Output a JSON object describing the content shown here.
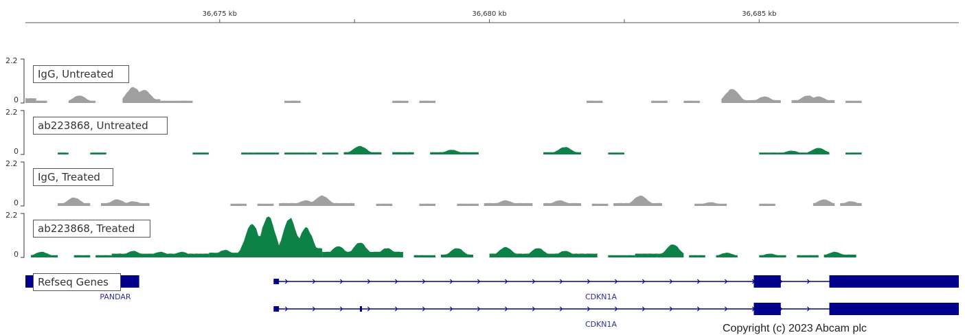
{
  "viewer": {
    "locus": {
      "start_kb": 36671.4,
      "end_kb": 36688.7
    },
    "ruler": {
      "major_ticks_kb": [
        36675,
        36680,
        36685
      ],
      "major_labels": [
        "36,675 kb",
        "36,680 kb",
        "36,685 kb"
      ],
      "minor_ticks_kb": [
        36677.5,
        36682.5
      ]
    }
  },
  "tracks": [
    {
      "name": "IgG, Untreated",
      "scale_max": "2.2",
      "scale_min": "0",
      "color": "#a0a0a0",
      "segments": [
        {
          "from": 36671.4,
          "to": 36671.6,
          "h": 0.25
        },
        {
          "from": 36671.6,
          "to": 36671.8,
          "h": 0.12
        },
        {
          "from": 36672.2,
          "to": 36672.7,
          "h": 0.12,
          "bumps": [
            [
              36672.4,
              0.4
            ]
          ]
        },
        {
          "from": 36673.2,
          "to": 36673.9,
          "h": 0.2,
          "bumps": [
            [
              36673.4,
              0.85
            ],
            [
              36673.6,
              0.7
            ]
          ]
        },
        {
          "from": 36673.9,
          "to": 36674.5,
          "h": 0.12
        },
        {
          "from": 36676.2,
          "to": 36676.5,
          "h": 0.12
        },
        {
          "from": 36678.2,
          "to": 36678.5,
          "h": 0.12
        },
        {
          "from": 36678.7,
          "to": 36679.0,
          "h": 0.12
        },
        {
          "from": 36681.8,
          "to": 36682.1,
          "h": 0.12
        },
        {
          "from": 36683.0,
          "to": 36683.3,
          "h": 0.12
        },
        {
          "from": 36683.6,
          "to": 36683.9,
          "h": 0.12
        },
        {
          "from": 36684.3,
          "to": 36684.8,
          "h": 0.15,
          "bumps": [
            [
              36684.5,
              0.75
            ]
          ]
        },
        {
          "from": 36684.8,
          "to": 36685.4,
          "h": 0.15,
          "bumps": [
            [
              36685.1,
              0.35
            ]
          ]
        },
        {
          "from": 36685.6,
          "to": 36686.4,
          "h": 0.15,
          "bumps": [
            [
              36685.9,
              0.4
            ],
            [
              36686.1,
              0.35
            ]
          ]
        },
        {
          "from": 36686.6,
          "to": 36686.9,
          "h": 0.12
        }
      ]
    },
    {
      "name": "ab223868, Untreated",
      "scale_max": "2.2",
      "scale_min": "0",
      "color": "#0e8246",
      "segments": [
        {
          "from": 36672.0,
          "to": 36672.2,
          "h": 0.1
        },
        {
          "from": 36672.6,
          "to": 36672.9,
          "h": 0.1
        },
        {
          "from": 36674.5,
          "to": 36674.8,
          "h": 0.1
        },
        {
          "from": 36675.4,
          "to": 36676.1,
          "h": 0.1
        },
        {
          "from": 36676.2,
          "to": 36676.8,
          "h": 0.1
        },
        {
          "from": 36676.9,
          "to": 36677.2,
          "h": 0.1
        },
        {
          "from": 36677.3,
          "to": 36678.0,
          "h": 0.12,
          "bumps": [
            [
              36677.6,
              0.45
            ]
          ]
        },
        {
          "from": 36678.2,
          "to": 36678.6,
          "h": 0.12
        },
        {
          "from": 36678.9,
          "to": 36679.8,
          "h": 0.12,
          "bumps": [
            [
              36679.3,
              0.25
            ]
          ]
        },
        {
          "from": 36681.0,
          "to": 36681.7,
          "h": 0.12,
          "bumps": [
            [
              36681.4,
              0.4
            ]
          ]
        },
        {
          "from": 36682.2,
          "to": 36682.5,
          "h": 0.1
        },
        {
          "from": 36685.0,
          "to": 36685.9,
          "h": 0.1,
          "bumps": [
            [
              36685.6,
              0.2
            ]
          ]
        },
        {
          "from": 36685.9,
          "to": 36686.3,
          "h": 0.12,
          "bumps": [
            [
              36686.1,
              0.35
            ]
          ]
        },
        {
          "from": 36686.6,
          "to": 36686.9,
          "h": 0.1
        }
      ]
    },
    {
      "name": "IgG, Treated",
      "scale_max": "2.2",
      "scale_min": "0",
      "color": "#a0a0a0",
      "segments": [
        {
          "from": 36672.0,
          "to": 36672.6,
          "h": 0.15,
          "bumps": [
            [
              36672.3,
              0.45
            ]
          ]
        },
        {
          "from": 36672.8,
          "to": 36673.7,
          "h": 0.15,
          "bumps": [
            [
              36673.1,
              0.35
            ],
            [
              36673.4,
              0.25
            ]
          ]
        },
        {
          "from": 36675.2,
          "to": 36675.5,
          "h": 0.12
        },
        {
          "from": 36675.7,
          "to": 36676.0,
          "h": 0.12
        },
        {
          "from": 36676.1,
          "to": 36677.5,
          "h": 0.15,
          "bumps": [
            [
              36676.6,
              0.3
            ],
            [
              36676.9,
              0.55
            ]
          ]
        },
        {
          "from": 36677.9,
          "to": 36678.2,
          "h": 0.12
        },
        {
          "from": 36678.7,
          "to": 36679.0,
          "h": 0.12
        },
        {
          "from": 36679.4,
          "to": 36679.8,
          "h": 0.12
        },
        {
          "from": 36679.9,
          "to": 36680.8,
          "h": 0.15,
          "bumps": [
            [
              36680.3,
              0.3
            ]
          ]
        },
        {
          "from": 36681.0,
          "to": 36681.7,
          "h": 0.15,
          "bumps": [
            [
              36681.3,
              0.3
            ]
          ]
        },
        {
          "from": 36681.9,
          "to": 36682.2,
          "h": 0.12
        },
        {
          "from": 36682.3,
          "to": 36683.2,
          "h": 0.15,
          "bumps": [
            [
              36682.8,
              0.55
            ]
          ]
        },
        {
          "from": 36683.8,
          "to": 36684.4,
          "h": 0.12,
          "bumps": [
            [
              36684.1,
              0.2
            ]
          ]
        },
        {
          "from": 36685.0,
          "to": 36685.3,
          "h": 0.12
        },
        {
          "from": 36686.0,
          "to": 36686.4,
          "h": 0.15,
          "bumps": [
            [
              36686.2,
              0.35
            ]
          ]
        },
        {
          "from": 36686.5,
          "to": 36686.9,
          "h": 0.15,
          "bumps": [
            [
              36686.7,
              0.25
            ]
          ]
        }
      ]
    },
    {
      "name": "ab223868, Treated",
      "scale_max": "2.2",
      "scale_min": "0",
      "color": "#0e8246",
      "segments": [
        {
          "from": 36671.5,
          "to": 36672.0,
          "h": 0.12,
          "bumps": [
            [
              36671.7,
              0.3
            ]
          ]
        },
        {
          "from": 36672.3,
          "to": 36672.6,
          "h": 0.12
        },
        {
          "from": 36672.7,
          "to": 36673.0,
          "h": 0.12
        },
        {
          "from": 36673.0,
          "to": 36674.8,
          "h": 0.2,
          "bumps": [
            [
              36673.4,
              0.35
            ],
            [
              36673.9,
              0.3
            ],
            [
              36674.3,
              0.3
            ]
          ]
        },
        {
          "from": 36674.8,
          "to": 36676.9,
          "h": 0.25,
          "bumps": [
            [
              36675.1,
              0.4
            ],
            [
              36675.6,
              1.8
            ],
            [
              36675.9,
              2.2
            ],
            [
              36676.3,
              2.1
            ],
            [
              36676.6,
              1.6
            ],
            [
              36676.85,
              0.5
            ]
          ]
        },
        {
          "from": 36676.9,
          "to": 36678.4,
          "h": 0.3,
          "bumps": [
            [
              36677.2,
              0.6
            ],
            [
              36677.6,
              0.8
            ],
            [
              36678.1,
              0.5
            ]
          ]
        },
        {
          "from": 36678.6,
          "to": 36679.0,
          "h": 0.12
        },
        {
          "from": 36679.1,
          "to": 36679.7,
          "h": 0.15,
          "bumps": [
            [
              36679.4,
              0.5
            ]
          ]
        },
        {
          "from": 36680.0,
          "to": 36682.0,
          "h": 0.2,
          "bumps": [
            [
              36680.3,
              0.55
            ],
            [
              36680.9,
              0.5
            ],
            [
              36681.4,
              0.35
            ]
          ]
        },
        {
          "from": 36682.2,
          "to": 36682.7,
          "h": 0.12
        },
        {
          "from": 36682.7,
          "to": 36683.1,
          "h": 0.2,
          "bumps": [
            [
              36683.0,
              0.2
            ]
          ]
        },
        {
          "from": 36683.1,
          "to": 36683.6,
          "h": 0.2,
          "bumps": [
            [
              36683.4,
              0.7
            ]
          ]
        },
        {
          "from": 36683.7,
          "to": 36684.0,
          "h": 0.12
        },
        {
          "from": 36684.2,
          "to": 36684.6,
          "h": 0.12,
          "bumps": [
            [
              36684.4,
              0.25
            ]
          ]
        },
        {
          "from": 36685.0,
          "to": 36685.5,
          "h": 0.12,
          "bumps": [
            [
              36685.2,
              0.2
            ]
          ]
        },
        {
          "from": 36685.7,
          "to": 36686.1,
          "h": 0.12
        },
        {
          "from": 36686.2,
          "to": 36686.8,
          "h": 0.15,
          "bumps": [
            [
              36686.4,
              0.3
            ]
          ]
        }
      ]
    }
  ],
  "genes_track": {
    "name": "Refseq Genes",
    "color": "#00008b",
    "label_color": "#2e2e9e",
    "genes": [
      {
        "name": "PANDAR",
        "row": 0,
        "start": 36671.4,
        "end": 36673.5,
        "exons": [
          {
            "from": 36671.4,
            "to": 36673.5,
            "thick": true
          }
        ],
        "strand": "none"
      },
      {
        "name": "CDKN1A",
        "row": 0,
        "start": 36676.0,
        "end": 36688.7,
        "exons": [
          {
            "from": 36676.0,
            "to": 36676.1,
            "thick": false
          },
          {
            "from": 36684.9,
            "to": 36685.4,
            "thick": true
          },
          {
            "from": 36686.3,
            "to": 36688.7,
            "thick": true
          }
        ],
        "strand": "+"
      },
      {
        "name": "CDKN1A",
        "row": 1,
        "start": 36676.0,
        "end": 36688.7,
        "exons": [
          {
            "from": 36676.0,
            "to": 36676.1,
            "thick": false
          },
          {
            "from": 36677.6,
            "to": 36677.63,
            "thick": false
          },
          {
            "from": 36684.9,
            "to": 36685.4,
            "thick": true
          },
          {
            "from": 36686.3,
            "to": 36688.7,
            "thick": true
          }
        ],
        "strand": "+"
      }
    ]
  },
  "footer": {
    "copyright": "Copyright (c) 2023 Abcam plc"
  }
}
